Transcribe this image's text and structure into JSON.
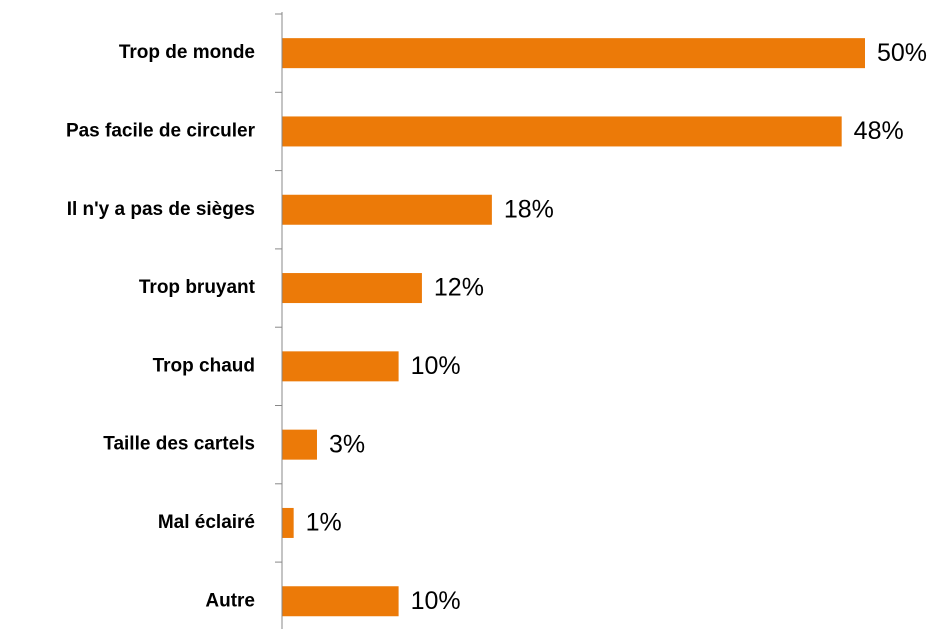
{
  "chart_data": {
    "type": "hbar",
    "categories": [
      "Trop de monde",
      "Pas facile de circuler",
      "Il n'y a pas de sièges",
      "Trop bruyant",
      "Trop chaud",
      "Taille des cartels",
      "Mal éclairé",
      "Autre"
    ],
    "values": [
      50,
      48,
      18,
      12,
      10,
      3,
      1,
      10
    ],
    "value_labels": [
      "50%",
      "48%",
      "18%",
      "12%",
      "10%",
      "3%",
      "1%",
      "10%"
    ],
    "color": "#ec7a08",
    "xlim": [
      0,
      50
    ]
  }
}
